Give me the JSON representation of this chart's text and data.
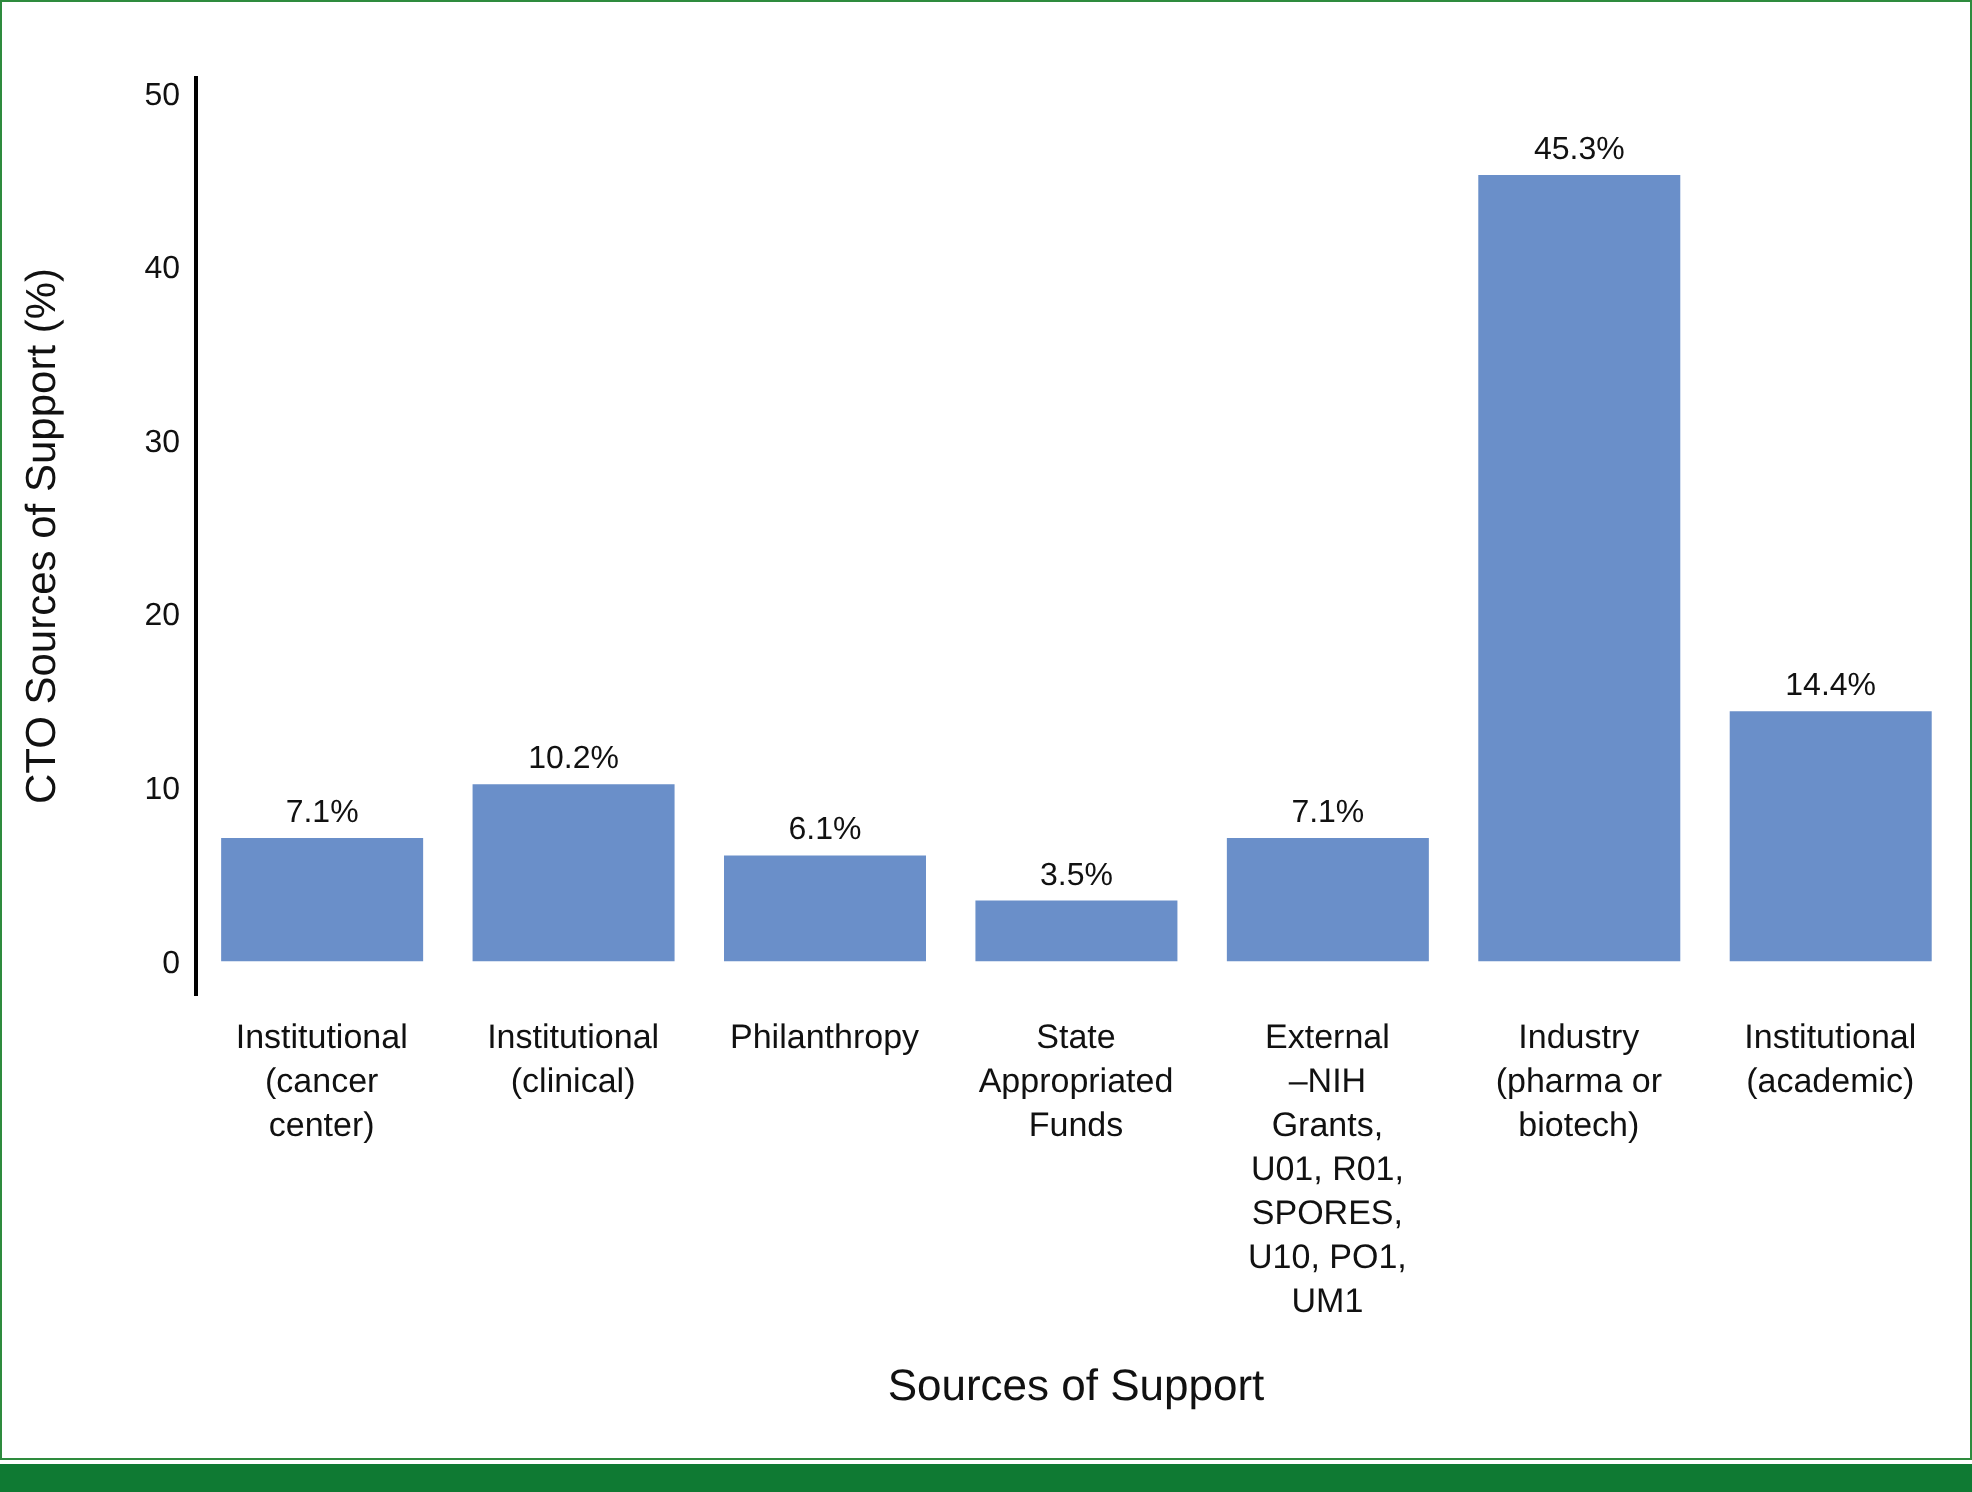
{
  "chart_data": {
    "type": "bar",
    "xlabel": "Sources of Support",
    "ylabel": "CTO Sources of Support (%)",
    "categories": [
      "Institutional\n(cancer\ncenter)",
      "Institutional\n(clinical)",
      "Philanthropy",
      "State\nAppropriated\nFunds",
      "External\n–NIH\nGrants,\nU01, R01,\nSPORES,\nU10, PO1,\nUM1",
      "Industry\n(pharma or\nbiotech)",
      "Institutional\n(academic)"
    ],
    "values": [
      7.1,
      10.2,
      6.1,
      3.5,
      7.1,
      45.3,
      14.4
    ],
    "value_labels": [
      "7.1%",
      "10.2%",
      "6.1%",
      "3.5%",
      "7.1%",
      "45.3%",
      "14.4%"
    ],
    "color": "#6a8fc9",
    "ylim": [
      -2,
      51
    ],
    "yticks": [
      0,
      10,
      20,
      30,
      40,
      50
    ],
    "grid": false,
    "legend": false
  }
}
